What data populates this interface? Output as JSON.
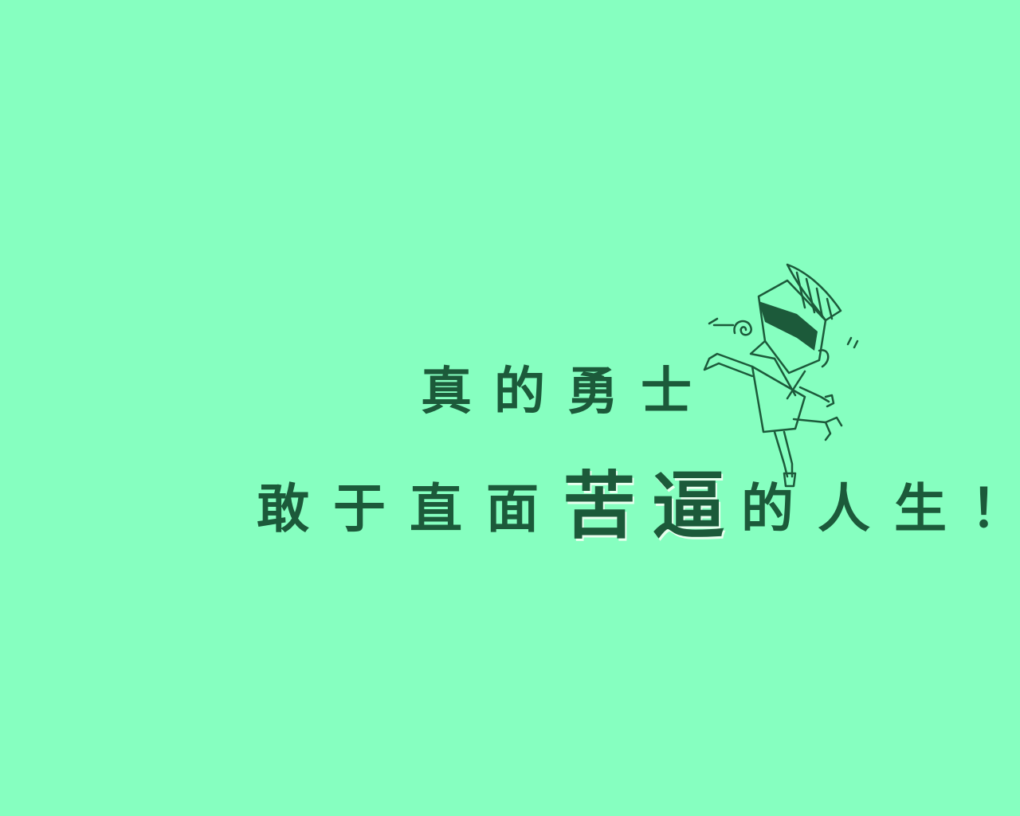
{
  "slogan": {
    "line1": "真的勇士",
    "line2_before": [
      "敢",
      "于",
      "直",
      "面"
    ],
    "line2_emphasis": [
      "苦",
      "逼"
    ],
    "line2_after": [
      "的",
      "人",
      "生",
      "！"
    ]
  },
  "colors": {
    "background": "#86ffc0",
    "text": "#1c5a3a"
  },
  "illustration": {
    "icon": "cartoon-character-with-sunglasses-icon"
  }
}
